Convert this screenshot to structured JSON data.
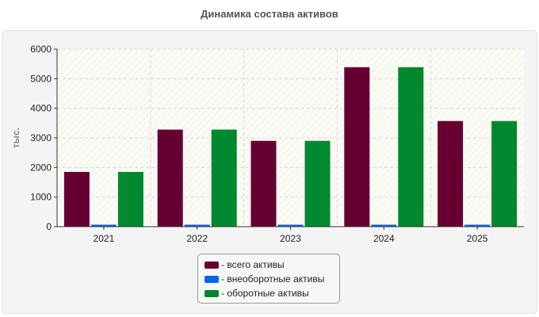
{
  "chart_data": {
    "type": "bar",
    "title": "Динамика состава активов",
    "ylabel": "тыс.",
    "xlabel": "",
    "categories": [
      "2021",
      "2022",
      "2023",
      "2024",
      "2025"
    ],
    "ylim": [
      0,
      6000
    ],
    "yticks": [
      0,
      1000,
      2000,
      3000,
      4000,
      5000,
      6000
    ],
    "grid": true,
    "legend_position": "bottom",
    "series": [
      {
        "name": "- всего активы",
        "color": "#660033",
        "values": [
          1850,
          3280,
          2900,
          5390,
          3570
        ]
      },
      {
        "name": "- внеоборотные активы",
        "color": "#0a66e8",
        "values": [
          20,
          20,
          20,
          20,
          20
        ]
      },
      {
        "name": "- оборотные активы",
        "color": "#00882e",
        "values": [
          1850,
          3280,
          2900,
          5390,
          3570
        ]
      }
    ]
  }
}
